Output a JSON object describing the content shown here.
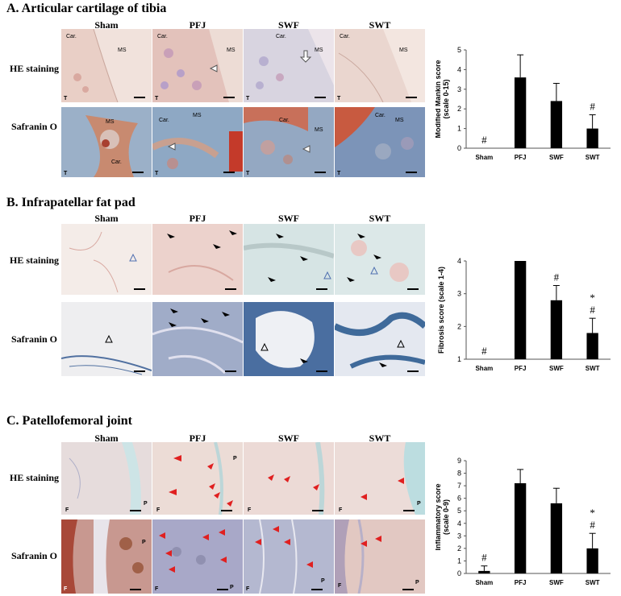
{
  "sections": [
    {
      "title": "A.  Articular cartilage of tibia",
      "columns": [
        "Sham",
        "PFJ",
        "SWF",
        "SWT"
      ],
      "rows": [
        "HE staining",
        "Safranin O"
      ]
    },
    {
      "title": "B.  Infrapatellar fat pad",
      "columns": [
        "Sham",
        "PFJ",
        "SWF",
        "SWT"
      ],
      "rows": [
        "HE staining",
        "Safranin O"
      ]
    },
    {
      "title": "C.  Patellofemoral joint",
      "columns": [
        "Sham",
        "PFJ",
        "SWF",
        "SWT"
      ],
      "rows": [
        "HE staining",
        "Safranin O"
      ]
    }
  ],
  "panel_texts": {
    "car": "Car.",
    "ms": "MS",
    "t": "T",
    "f": "F",
    "p": "P"
  },
  "colors": {
    "he": "#e7c9c0",
    "saf": "#8fa0c0",
    "cart_red": "#c0392b",
    "bar": "#000000",
    "arrow_red": "#e02020"
  },
  "chart_data": [
    {
      "type": "bar",
      "categories": [
        "Sham",
        "PFJ",
        "SWF",
        "SWT"
      ],
      "values": [
        0,
        3.6,
        2.4,
        1.0
      ],
      "errors": [
        0,
        1.15,
        0.9,
        0.7
      ],
      "annotations": [
        "#",
        "",
        "",
        "#"
      ],
      "ylabel": "Modified Mankin score (scale 0-15)",
      "ylim": [
        0,
        5
      ],
      "yticks": [
        "0",
        "1",
        "2",
        "3",
        "4",
        "5"
      ],
      "grid": false
    },
    {
      "type": "bar",
      "categories": [
        "Sham",
        "PFJ",
        "SWF",
        "SWT"
      ],
      "values": [
        1,
        4.0,
        2.8,
        1.8
      ],
      "errors": [
        0,
        0,
        0.45,
        0.45
      ],
      "annotations": [
        "#",
        "",
        "#",
        "*\n#"
      ],
      "ylabel": "Fibrosis score (scale 1-4)",
      "ylim": [
        1,
        4
      ],
      "yticks": [
        "1",
        "2",
        "3",
        "4"
      ],
      "grid": false
    },
    {
      "type": "bar",
      "categories": [
        "Sham",
        "PFJ",
        "SWF",
        "SWT"
      ],
      "values": [
        0.2,
        7.2,
        5.6,
        2.0
      ],
      "errors": [
        0.4,
        1.1,
        1.2,
        1.2
      ],
      "annotations": [
        "#",
        "",
        "",
        "*\n#"
      ],
      "ylabel": "Inflammatory score (scale 0-9)",
      "ylim": [
        0,
        9
      ],
      "yticks": [
        "0",
        "1",
        "2",
        "3",
        "4",
        "5",
        "6",
        "7",
        "8",
        "9"
      ],
      "grid": false
    }
  ]
}
